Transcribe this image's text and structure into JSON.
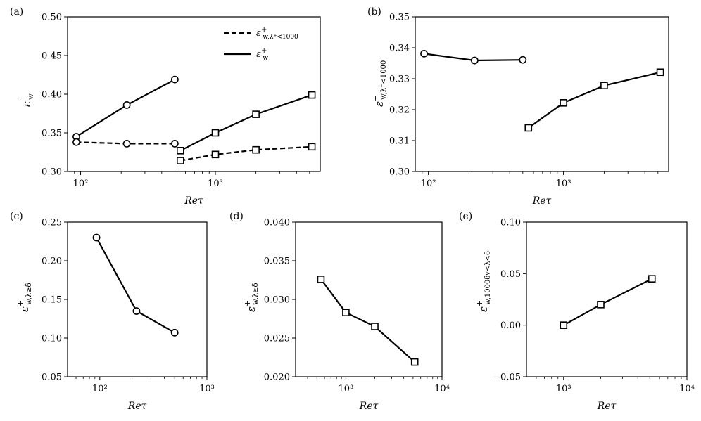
{
  "chart_data": [
    {
      "id": "a",
      "type": "line",
      "panel_label": "(a)",
      "xscale": "log",
      "xlim": [
        80,
        6000
      ],
      "ylim": [
        0.3,
        0.5
      ],
      "xticks": [
        100,
        1000
      ],
      "xtick_labels": [
        "10²",
        "10³"
      ],
      "yticks": [
        0.3,
        0.35,
        0.4,
        0.45,
        0.5
      ],
      "ytick_labels": [
        "0.30",
        "0.35",
        "0.40",
        "0.45",
        "0.50"
      ],
      "xlabel": "Reτ",
      "ylabel": "ε⁺w",
      "legend_position": "top-right",
      "series": [
        {
          "name": "ε⁺w",
          "legend": "solid",
          "style": "solid",
          "marker": "circle",
          "x": [
            93,
            220,
            500
          ],
          "y": [
            0.345,
            0.386,
            0.419
          ]
        },
        {
          "name": "ε⁺w",
          "style": "solid",
          "marker": "square",
          "x": [
            550,
            1000,
            2000,
            5200
          ],
          "y": [
            0.327,
            0.35,
            0.374,
            0.399
          ]
        },
        {
          "name": "ε⁺w,λ⁺<1000",
          "legend": "dashed",
          "style": "dashed",
          "marker": "circle",
          "x": [
            93,
            220,
            500
          ],
          "y": [
            0.338,
            0.336,
            0.336
          ]
        },
        {
          "name": "ε⁺w,λ⁺<1000",
          "style": "dashed",
          "marker": "square",
          "x": [
            550,
            1000,
            2000,
            5200
          ],
          "y": [
            0.314,
            0.322,
            0.328,
            0.332
          ]
        }
      ]
    },
    {
      "id": "b",
      "type": "line",
      "panel_label": "(b)",
      "xscale": "log",
      "xlim": [
        80,
        6000
      ],
      "ylim": [
        0.3,
        0.35
      ],
      "xticks": [
        100,
        1000
      ],
      "xtick_labels": [
        "10²",
        "10³"
      ],
      "yticks": [
        0.3,
        0.31,
        0.32,
        0.33,
        0.34,
        0.35
      ],
      "ytick_labels": [
        "0.30",
        "0.31",
        "0.32",
        "0.33",
        "0.34",
        "0.35"
      ],
      "xlabel": "Reτ",
      "ylabel": "ε⁺w,λ⁺<1000",
      "series": [
        {
          "name": "circles",
          "style": "solid",
          "marker": "circle",
          "x": [
            93,
            220,
            500
          ],
          "y": [
            0.3381,
            0.3359,
            0.3361
          ]
        },
        {
          "name": "squares",
          "style": "solid",
          "marker": "square",
          "x": [
            550,
            1000,
            2000,
            5200
          ],
          "y": [
            0.3141,
            0.3222,
            0.3278,
            0.3321
          ]
        }
      ]
    },
    {
      "id": "c",
      "type": "line",
      "panel_label": "(c)",
      "xscale": "log",
      "xlim": [
        50,
        1000
      ],
      "ylim": [
        0.05,
        0.25
      ],
      "xticks": [
        100,
        1000
      ],
      "xtick_labels": [
        "10²",
        "10³"
      ],
      "yticks": [
        0.05,
        0.1,
        0.15,
        0.2,
        0.25
      ],
      "ytick_labels": [
        "0.05",
        "0.10",
        "0.15",
        "0.20",
        "0.25"
      ],
      "xlabel": "Reτ",
      "ylabel": "ε⁺w,λ≥δ",
      "series": [
        {
          "name": "circles",
          "style": "solid",
          "marker": "circle",
          "x": [
            93,
            220,
            500
          ],
          "y": [
            0.23,
            0.135,
            0.107
          ]
        }
      ]
    },
    {
      "id": "d",
      "type": "line",
      "panel_label": "(d)",
      "xscale": "log",
      "xlim": [
        300,
        10000
      ],
      "ylim": [
        0.02,
        0.04
      ],
      "xticks": [
        1000,
        10000
      ],
      "xtick_labels": [
        "10³",
        "10⁴"
      ],
      "yticks": [
        0.02,
        0.025,
        0.03,
        0.035,
        0.04
      ],
      "ytick_labels": [
        "0.020",
        "0.025",
        "0.030",
        "0.035",
        "0.040"
      ],
      "xlabel": "Reτ",
      "ylabel": "ε⁺w,λ≥δ",
      "series": [
        {
          "name": "squares",
          "style": "solid",
          "marker": "square",
          "x": [
            550,
            1000,
            2000,
            5200
          ],
          "y": [
            0.0326,
            0.0283,
            0.0265,
            0.0219
          ]
        }
      ]
    },
    {
      "id": "e",
      "type": "line",
      "panel_label": "(e)",
      "xscale": "log",
      "xlim": [
        500,
        10000
      ],
      "ylim": [
        -0.05,
        0.1
      ],
      "xticks": [
        1000,
        10000
      ],
      "xtick_labels": [
        "10³",
        "10⁴"
      ],
      "yticks": [
        -0.05,
        0.0,
        0.05,
        0.1
      ],
      "ytick_labels": [
        "−0.05",
        "0.00",
        "0.05",
        "0.10"
      ],
      "xlabel": "Reτ",
      "ylabel": "ε⁺w,1000δv<λ<δ",
      "series": [
        {
          "name": "squares",
          "style": "solid",
          "marker": "square",
          "x": [
            1000,
            2000,
            5200
          ],
          "y": [
            0.0,
            0.02,
            0.045
          ]
        }
      ]
    }
  ]
}
